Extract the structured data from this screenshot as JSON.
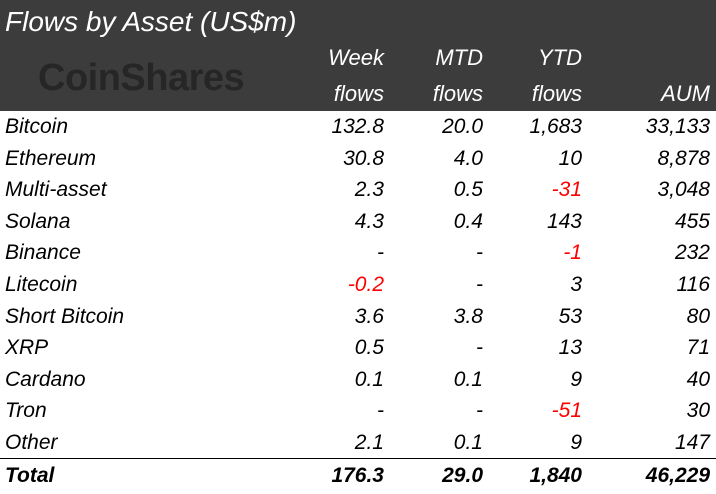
{
  "title": "Flows by Asset (US$m)",
  "logo_text": "CoinShares",
  "columns": [
    {
      "line1": "Week",
      "line2": "flows"
    },
    {
      "line1": "MTD",
      "line2": "flows"
    },
    {
      "line1": "YTD",
      "line2": "flows"
    },
    {
      "line1": "",
      "line2": "AUM"
    }
  ],
  "rows": [
    {
      "asset": "Bitcoin",
      "week": "132.8",
      "mtd": "20.0",
      "ytd": "1,683",
      "aum": "33,133"
    },
    {
      "asset": "Ethereum",
      "week": "30.8",
      "mtd": "4.0",
      "ytd": "10",
      "aum": "8,878"
    },
    {
      "asset": "Multi-asset",
      "week": "2.3",
      "mtd": "0.5",
      "ytd": "-31",
      "aum": "3,048"
    },
    {
      "asset": "Solana",
      "week": "4.3",
      "mtd": "0.4",
      "ytd": "143",
      "aum": "455"
    },
    {
      "asset": "Binance",
      "week": "-",
      "mtd": "-",
      "ytd": "-1",
      "aum": "232"
    },
    {
      "asset": "Litecoin",
      "week": "-0.2",
      "mtd": "-",
      "ytd": "3",
      "aum": "116"
    },
    {
      "asset": "Short Bitcoin",
      "week": "3.6",
      "mtd": "3.8",
      "ytd": "53",
      "aum": "80"
    },
    {
      "asset": "XRP",
      "week": "0.5",
      "mtd": "-",
      "ytd": "13",
      "aum": "71"
    },
    {
      "asset": "Cardano",
      "week": "0.1",
      "mtd": "0.1",
      "ytd": "9",
      "aum": "40"
    },
    {
      "asset": "Tron",
      "week": "-",
      "mtd": "-",
      "ytd": "-51",
      "aum": "30"
    },
    {
      "asset": "Other",
      "week": "2.1",
      "mtd": "0.1",
      "ytd": "9",
      "aum": "147"
    }
  ],
  "total": {
    "asset": "Total",
    "week": "176.3",
    "mtd": "29.0",
    "ytd": "1,840",
    "aum": "46,229"
  },
  "colors": {
    "header_bg": "#3c3c3c",
    "negative": "#ff0000",
    "logo": "#262626"
  }
}
